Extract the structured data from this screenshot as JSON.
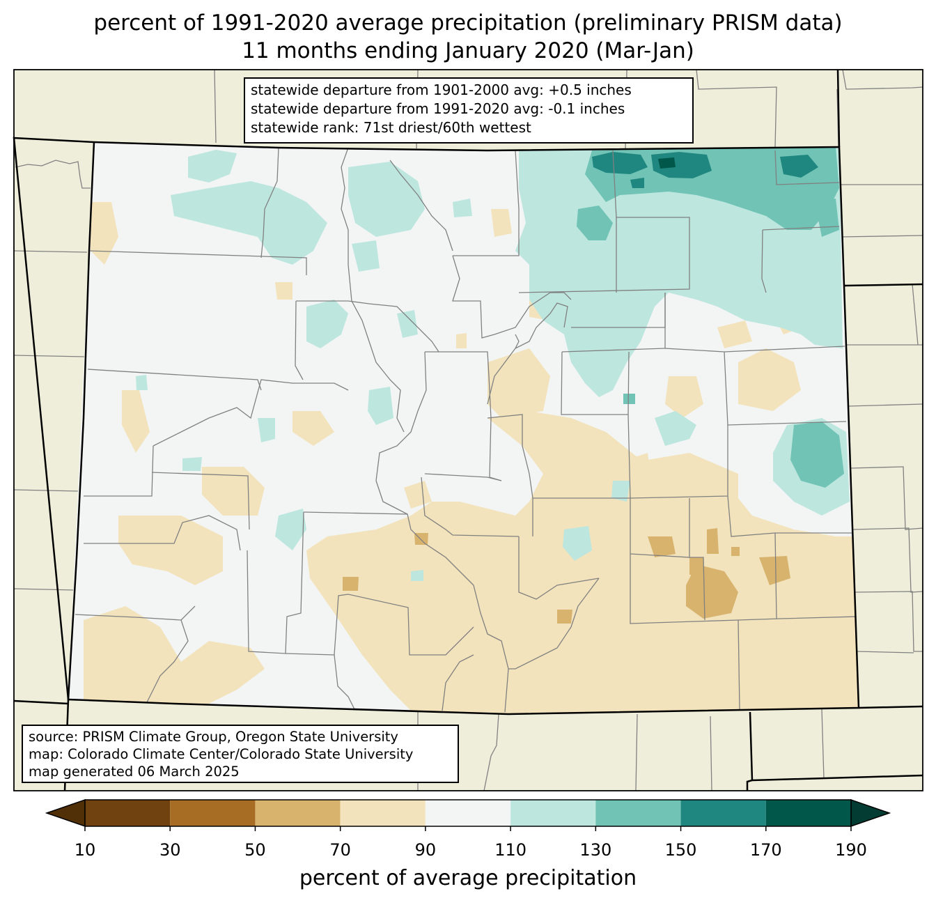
{
  "title": {
    "line1": "percent of 1991-2020 average precipitation (preliminary PRISM data)",
    "line2": "11 months ending January 2020 (Mar-Jan)"
  },
  "stats_box": {
    "line1": "statewide departure from 1901-2000 avg: +0.5 inches",
    "line2": "statewide departure from 1991-2020 avg: -0.1 inches",
    "line3": "statewide rank: 71st driest/60th wettest"
  },
  "source_box": {
    "line1": "source: PRISM Climate Group, Oregon State University",
    "line2": "map: Colorado Climate Center/Colorado State University",
    "line3": "map generated 06 March 2025"
  },
  "colorbar": {
    "label": "percent of average precipitation",
    "ticks": [
      "10",
      "30",
      "50",
      "70",
      "90",
      "110",
      "130",
      "150",
      "170",
      "190"
    ],
    "bins": [
      {
        "min": 10,
        "max": 30,
        "color": "#704210"
      },
      {
        "min": 30,
        "max": 50,
        "color": "#a86d25"
      },
      {
        "min": 50,
        "max": 70,
        "color": "#d8b36e"
      },
      {
        "min": 70,
        "max": 90,
        "color": "#f2e3bc"
      },
      {
        "min": 90,
        "max": 110,
        "color": "#f3f5f4"
      },
      {
        "min": 110,
        "max": 130,
        "color": "#bde6df"
      },
      {
        "min": 130,
        "max": 150,
        "color": "#70c3b5"
      },
      {
        "min": 150,
        "max": 170,
        "color": "#208780"
      },
      {
        "min": 170,
        "max": 190,
        "color": "#02574b"
      }
    ],
    "under_color": "#513007",
    "over_color": "#023c32"
  },
  "colors": {
    "land_outside": "#efeedb",
    "state_border": "#000000",
    "county_border": "#808080"
  }
}
